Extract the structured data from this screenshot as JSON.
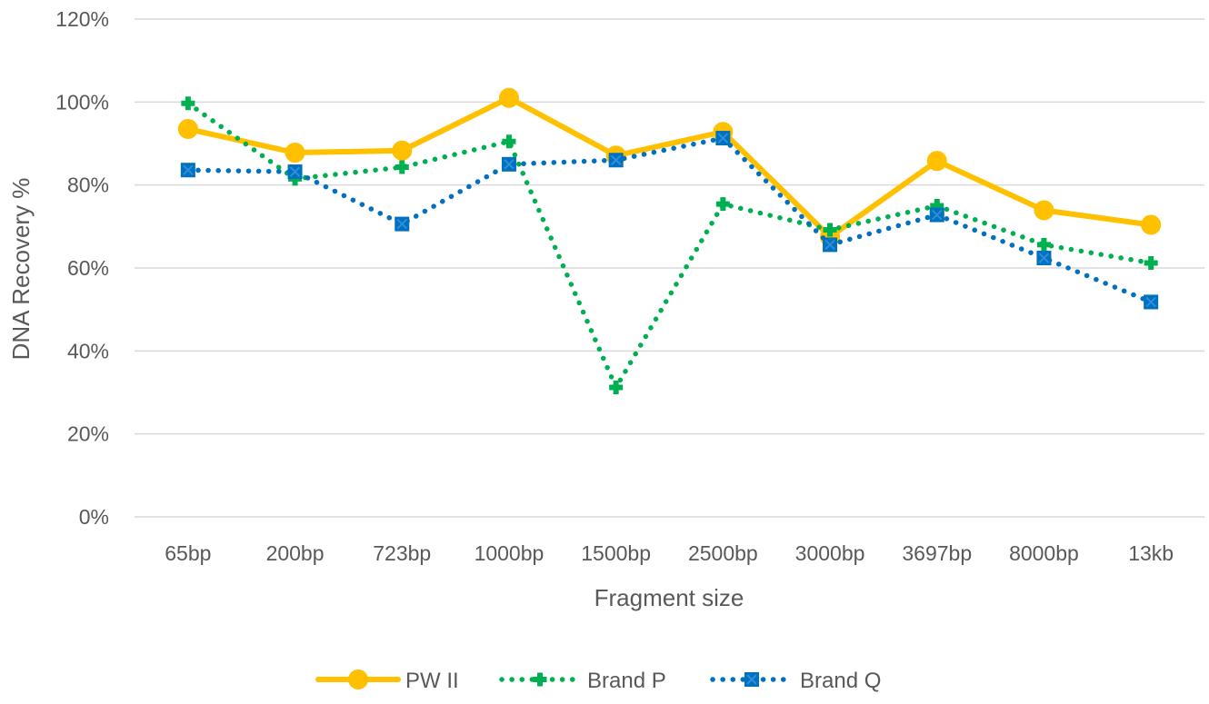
{
  "chart_data": {
    "type": "line",
    "title": "",
    "xlabel": "Fragment size",
    "ylabel": "DNA Recovery %",
    "categories": [
      "65bp",
      "200bp",
      "723bp",
      "1000bp",
      "1500bp",
      "2500bp",
      "3000bp",
      "3697bp",
      "8000bp",
      "13kb"
    ],
    "ylim": [
      0,
      120
    ],
    "yticks": [
      "0%",
      "20%",
      "40%",
      "60%",
      "80%",
      "100%",
      "120%"
    ],
    "grid": "horizontal",
    "legend_position": "bottom",
    "series": [
      {
        "name": "PW II",
        "color": "#FFC000",
        "style": "solid",
        "marker": "circle",
        "values": [
          93.5,
          87.8,
          88.3,
          101,
          87.1,
          92.8,
          67.5,
          85.8,
          73.9,
          70.4
        ]
      },
      {
        "name": "Brand P",
        "color": "#00B050",
        "style": "dotted",
        "marker": "plus",
        "values": [
          99.7,
          81.5,
          84.3,
          90.5,
          31.2,
          75.4,
          69.2,
          75.0,
          65.6,
          61.2
        ]
      },
      {
        "name": "Brand Q",
        "color": "#0070C0",
        "style": "dotted",
        "marker": "x-square",
        "values": [
          83.6,
          83.2,
          70.6,
          85.0,
          86.0,
          91.3,
          65.6,
          72.8,
          62.4,
          51.8
        ]
      }
    ]
  }
}
